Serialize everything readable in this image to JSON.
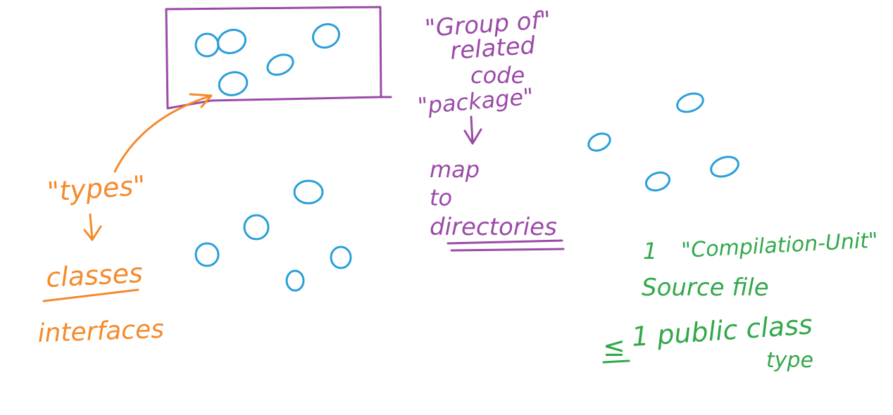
{
  "colors": {
    "background": "#ffffff",
    "purple": "#9b4aa8",
    "orange": "#f58a2c",
    "blue": "#2a9fd9",
    "green": "#32a84a"
  },
  "annotations": {
    "package": {
      "line1": "\"Group of\"",
      "line2": "related",
      "line3": "code",
      "line4": "\"package\"",
      "map": "map",
      "to": "to",
      "directories": "directories"
    },
    "types": {
      "label": "\"types\"",
      "classes": "classes",
      "interfaces": "interfaces"
    },
    "compilation": {
      "line1_num": "1",
      "line1_text": "\"Compilation-Unit\"",
      "line2": "Source file",
      "le_symbol": "≤",
      "line3": "1 public class",
      "line4": "type"
    }
  }
}
